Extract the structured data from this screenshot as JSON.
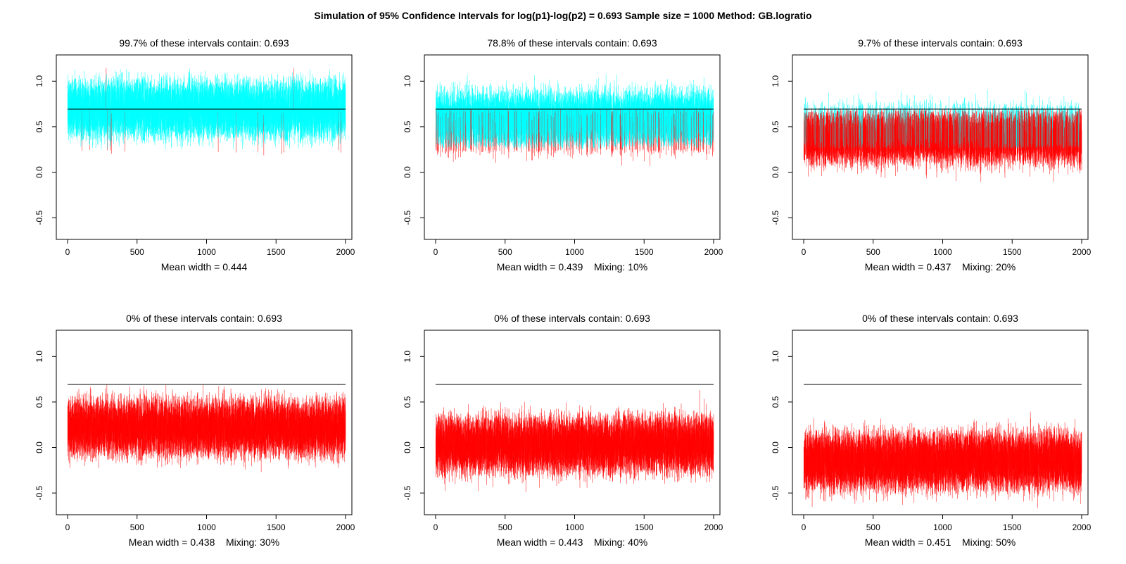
{
  "title": "Simulation of 95% Confidence Intervals for log(p1)-log(p2) = 0.693  Sample size = 1000    Method: GB.logratio",
  "colors": {
    "covering": "#00ffff",
    "missing": "#ff0000",
    "true_value_line": "#000000"
  },
  "chart_data": [
    {
      "type": "interval",
      "title": "99.7% of these intervals contain: 0.693",
      "caption": "Mean width = 0.444",
      "true_value": 0.693,
      "coverage": 0.997,
      "mean_width": 0.444,
      "mixing": 0,
      "center_mean": 0.693,
      "n_intervals": 2000,
      "xlim": [
        0,
        2000
      ],
      "ylim": [
        -0.7,
        1.25
      ],
      "xticks": [
        0,
        500,
        1000,
        1500,
        2000
      ],
      "yticks": [
        -0.5,
        0.0,
        0.5,
        1.0
      ],
      "ytick_labels": [
        "-0.5",
        "0.0",
        "0.5",
        "1.0"
      ]
    },
    {
      "type": "interval",
      "title": "78.8% of these intervals contain: 0.693",
      "caption": "Mean width = 0.439    Mixing: 10%",
      "true_value": 0.693,
      "coverage": 0.788,
      "mean_width": 0.439,
      "mixing": 0.1,
      "center_mean": 0.58,
      "n_intervals": 2000,
      "xlim": [
        0,
        2000
      ],
      "ylim": [
        -0.7,
        1.25
      ],
      "xticks": [
        0,
        500,
        1000,
        1500,
        2000
      ],
      "yticks": [
        -0.5,
        0.0,
        0.5,
        1.0
      ],
      "ytick_labels": [
        "-0.5",
        "0.0",
        "0.5",
        "1.0"
      ]
    },
    {
      "type": "interval",
      "title": "9.7% of these intervals contain: 0.693",
      "caption": "Mean width = 0.437    Mixing: 20%",
      "true_value": 0.693,
      "coverage": 0.097,
      "mean_width": 0.437,
      "mixing": 0.2,
      "center_mean": 0.4,
      "n_intervals": 2000,
      "xlim": [
        0,
        2000
      ],
      "ylim": [
        -0.7,
        1.25
      ],
      "xticks": [
        0,
        500,
        1000,
        1500,
        2000
      ],
      "yticks": [
        -0.5,
        0.0,
        0.5,
        1.0
      ],
      "ytick_labels": [
        "-0.5",
        "0.0",
        "0.5",
        "1.0"
      ]
    },
    {
      "type": "interval",
      "title": "0% of these intervals contain: 0.693",
      "caption": "Mean width = 0.438    Mixing: 30%",
      "true_value": 0.693,
      "coverage": 0.0,
      "mean_width": 0.438,
      "mixing": 0.3,
      "center_mean": 0.22,
      "n_intervals": 2000,
      "xlim": [
        0,
        2000
      ],
      "ylim": [
        -0.7,
        1.25
      ],
      "xticks": [
        0,
        500,
        1000,
        1500,
        2000
      ],
      "yticks": [
        -0.5,
        0.0,
        0.5,
        1.0
      ],
      "ytick_labels": [
        "-0.5",
        "0.0",
        "0.5",
        "1.0"
      ]
    },
    {
      "type": "interval",
      "title": "0% of these intervals contain: 0.693",
      "caption": "Mean width = 0.443    Mixing: 40%",
      "true_value": 0.693,
      "coverage": 0.0,
      "mean_width": 0.443,
      "mixing": 0.4,
      "center_mean": 0.03,
      "n_intervals": 2000,
      "xlim": [
        0,
        2000
      ],
      "ylim": [
        -0.7,
        1.25
      ],
      "xticks": [
        0,
        500,
        1000,
        1500,
        2000
      ],
      "yticks": [
        -0.5,
        0.0,
        0.5,
        1.0
      ],
      "ytick_labels": [
        "-0.5",
        "0.0",
        "0.5",
        "1.0"
      ]
    },
    {
      "type": "interval",
      "title": "0% of these intervals contain: 0.693",
      "caption": "Mean width = 0.451    Mixing: 50%",
      "true_value": 0.693,
      "coverage": 0.0,
      "mean_width": 0.451,
      "mixing": 0.5,
      "center_mean": -0.15,
      "n_intervals": 2000,
      "xlim": [
        0,
        2000
      ],
      "ylim": [
        -0.7,
        1.25
      ],
      "xticks": [
        0,
        500,
        1000,
        1500,
        2000
      ],
      "yticks": [
        -0.5,
        0.0,
        0.5,
        1.0
      ],
      "ytick_labels": [
        "-0.5",
        "0.0",
        "0.5",
        "1.0"
      ]
    }
  ]
}
